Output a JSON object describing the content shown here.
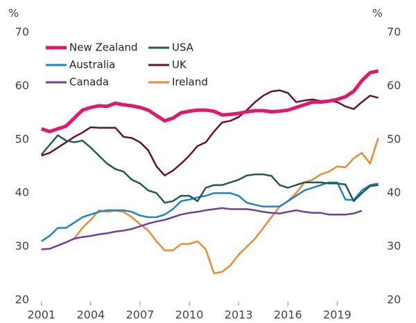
{
  "chart_data": {
    "type": "line",
    "y_label": "%",
    "x": [
      2001,
      2001.5,
      2002,
      2002.5,
      2003,
      2003.5,
      2004,
      2004.5,
      2005,
      2005.5,
      2006,
      2006.5,
      2007,
      2007.5,
      2008,
      2008.5,
      2009,
      2009.5,
      2010,
      2010.5,
      2011,
      2011.5,
      2012,
      2012.5,
      2013,
      2013.5,
      2014,
      2014.5,
      2015,
      2015.5,
      2016,
      2016.5,
      2017,
      2017.5,
      2018,
      2018.5,
      2019,
      2019.5,
      2020,
      2020.5,
      2021,
      2021.5
    ],
    "xlim": [
      2000.8,
      2021.6
    ],
    "xticks": [
      2001,
      2004,
      2007,
      2010,
      2013,
      2016,
      2019
    ],
    "ylim": [
      20,
      70
    ],
    "yticks": [
      20,
      30,
      40,
      50,
      60,
      70
    ],
    "grid": false,
    "legend": "upper left",
    "series": [
      {
        "name": "New Zealand",
        "color": "#e6176b",
        "values": [
          52,
          51.5,
          52,
          52.5,
          54,
          55.5,
          56,
          56.3,
          56.2,
          56.8,
          56.5,
          56.3,
          56,
          55.5,
          54.5,
          53.5,
          54,
          55,
          55.3,
          55.5,
          55.5,
          55.3,
          54.6,
          54.7,
          54.9,
          55.2,
          55.4,
          55.4,
          55.2,
          55.3,
          55.5,
          56,
          56.5,
          57,
          57,
          57.2,
          57.5,
          58,
          59,
          61,
          62.5,
          62.8
        ]
      },
      {
        "name": "USA",
        "color": "#1f5c4f",
        "values": [
          47.2,
          49,
          50.8,
          49.8,
          49.5,
          49.8,
          48.5,
          47,
          45.5,
          44.5,
          44,
          42.5,
          41.8,
          40.5,
          40,
          38.2,
          38.5,
          39.5,
          39.5,
          38.5,
          41,
          41.5,
          41.5,
          42,
          42.5,
          43.3,
          43.5,
          43.5,
          43.2,
          41.5,
          41,
          41.5,
          42,
          42,
          42,
          41.8,
          41.8,
          41.6,
          38.5,
          40,
          41.3,
          41.5
        ]
      },
      {
        "name": "Australia",
        "color": "#1a86c8",
        "values": [
          31,
          32,
          33.5,
          33.5,
          34.5,
          35.5,
          36,
          36.5,
          36.8,
          36.8,
          36.8,
          36.5,
          35.8,
          35.5,
          35.5,
          36,
          37,
          38.5,
          38.8,
          39.2,
          39.5,
          40,
          40,
          40,
          39.5,
          38.2,
          37.8,
          37.5,
          37.5,
          37.5,
          38.5,
          39.5,
          40.5,
          41,
          41.5,
          42,
          42,
          38.8,
          38.7,
          40.5,
          41.5,
          41.8
        ]
      },
      {
        "name": "UK",
        "color": "#6a0f32",
        "values": [
          47,
          47.5,
          48.5,
          49.5,
          50.5,
          51.3,
          52.3,
          52.2,
          52.2,
          52.2,
          50.5,
          50.3,
          49.5,
          48,
          45,
          43.3,
          44.2,
          45.5,
          47,
          48.8,
          49.5,
          51.5,
          53.2,
          53.5,
          54.2,
          55.5,
          57,
          58.2,
          59,
          59.2,
          58.7,
          57,
          57.3,
          57.5,
          57.2,
          57.3,
          57,
          56.2,
          55.7,
          57,
          58.2,
          57.8
        ]
      },
      {
        "name": "Canada",
        "color": "#6b3fa0",
        "values": [
          29.5,
          29.6,
          30.2,
          30.8,
          31.5,
          31.8,
          32,
          32.3,
          32.5,
          32.8,
          33,
          33.3,
          33.8,
          34.3,
          34.7,
          35,
          35.5,
          36,
          36.3,
          36.5,
          36.8,
          37,
          37.2,
          37,
          37,
          37,
          36.8,
          36.5,
          36.3,
          36.2,
          36.5,
          36.8,
          36.5,
          36.3,
          36.3,
          36,
          36,
          36,
          36.2,
          36.7,
          null,
          null
        ]
      },
      {
        "name": "Ireland",
        "color": "#ef8a2e",
        "values": [
          null,
          null,
          null,
          null,
          31.5,
          33.5,
          35,
          36.8,
          36.5,
          36.7,
          36.5,
          35.5,
          34.2,
          33,
          31,
          29.3,
          29.3,
          30.5,
          30.5,
          31,
          29.5,
          25,
          25.3,
          26.5,
          28.5,
          30,
          31.5,
          33.5,
          35.5,
          37.5,
          38.5,
          40,
          42,
          42.5,
          43.5,
          44,
          45,
          44.8,
          46.5,
          47.5,
          45.5,
          50.3
        ]
      }
    ]
  }
}
